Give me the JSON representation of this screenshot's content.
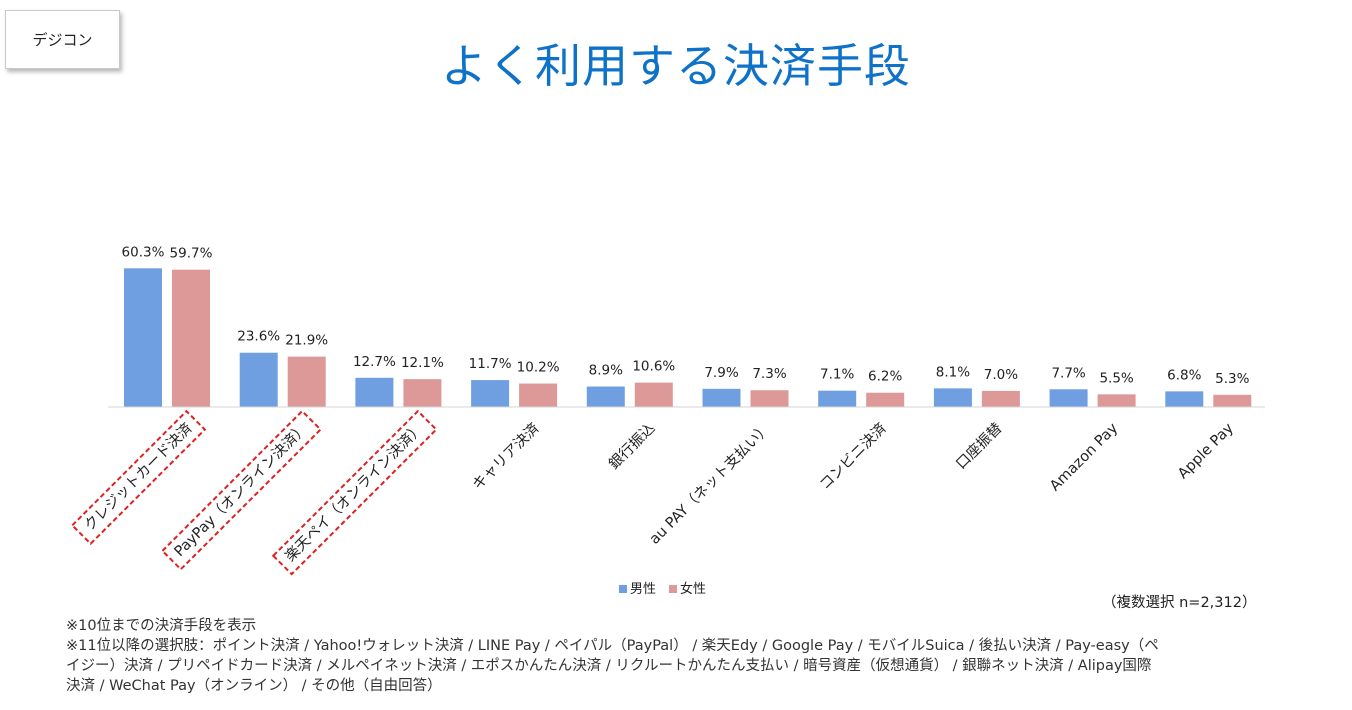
{
  "brand": "デジコン",
  "title": "よく利用する決済手段",
  "chart_data": {
    "type": "bar",
    "categories": [
      "クレジットカード決済",
      "PayPay（オンライン決済）",
      "楽天ペイ（オンライン決済）",
      "キャリア決済",
      "銀行振込",
      "au PAY（ネット支払い）",
      "コンビニ決済",
      "口座振替",
      "Amazon Pay",
      "Apple Pay"
    ],
    "series": [
      {
        "name": "男性",
        "color": "#6f9fe0",
        "values": [
          60.3,
          23.6,
          12.7,
          11.7,
          8.9,
          7.9,
          7.1,
          8.1,
          7.7,
          6.8
        ],
        "labels": [
          "60.3%",
          "23.6%",
          "12.7%",
          "11.7%",
          "8.9%",
          "7.9%",
          "7.1%",
          "8.1%",
          "7.7%",
          "6.8%"
        ]
      },
      {
        "name": "女性",
        "color": "#dc9997",
        "values": [
          59.7,
          21.9,
          12.1,
          10.2,
          10.6,
          7.3,
          6.2,
          7.0,
          5.5,
          5.3
        ],
        "labels": [
          "59.7%",
          "21.9%",
          "12.1%",
          "10.2%",
          "10.6%",
          "7.3%",
          "6.2%",
          "7.0%",
          "5.5%",
          "5.3%"
        ]
      }
    ],
    "highlighted_categories": [
      0,
      1,
      2
    ],
    "highlight_color": "#e02020",
    "ylim": [
      0,
      70
    ],
    "grid": false,
    "legend_position": "bottom-center"
  },
  "sample_note": "（複数選択 n=2,312）",
  "notes": [
    "※10位までの決済手段を表示",
    "※11位以降の選択肢：ポイント決済 / Yahoo!ウォレット決済 / LINE Pay / ペイパル（PayPal） / 楽天Edy / Google Pay / モバイルSuica / 後払い決済 / Pay-easy（ペ",
    "イジー）決済 / プリペイドカード決済 / メルペイネット決済 / エポスかんたん決済 / リクルートかんたん支払い / 暗号資産（仮想通貨） / 銀聯ネット決済 / Alipay国際",
    "決済 / WeChat Pay（オンライン） / その他（自由回答）"
  ]
}
